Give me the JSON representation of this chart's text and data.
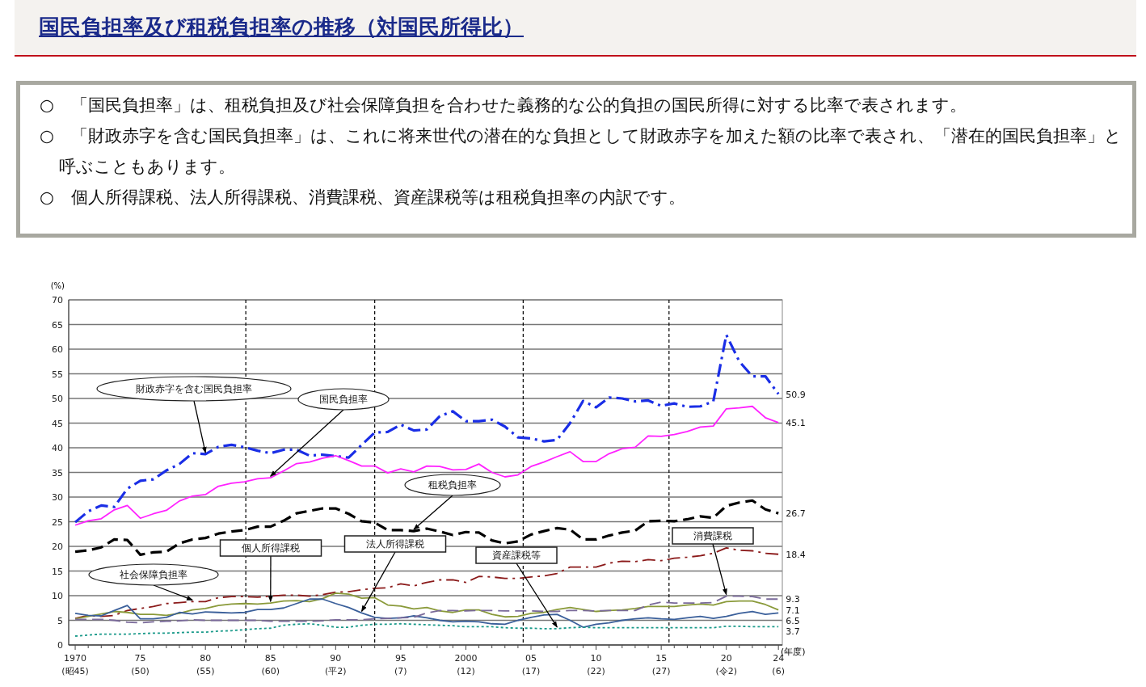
{
  "chart_data": {
    "type": "line",
    "title": "国民負担率及び租税負担率の推移（対国民所得比）",
    "annotations": [
      "○　「国民負担率」は、租税負担及び社会保障負担を合わせた義務的な公的負担の国民所得に対する比率で表されます。",
      "○　「財政赤字を含む国民負担率」は、これに将来世代の潜在的な負担として財政赤字を加えた額の比率で表され、「潜在的国民負担率」と呼ぶこともあります。",
      "○　個人所得課税、法人所得課税、消費課税、資産課税等は租税負担率の内訳です。"
    ],
    "xlabel": "(年度)",
    "ylabel": "(%)",
    "categories": [
      "1970\n(昭45)",
      null,
      null,
      null,
      null,
      "75\n(50)",
      null,
      null,
      null,
      null,
      "80\n(55)",
      null,
      null,
      null,
      null,
      "85\n(60)",
      null,
      null,
      null,
      null,
      "90\n(平2)",
      null,
      null,
      null,
      null,
      "95\n(7)",
      null,
      null,
      null,
      null,
      "2000\n(12)",
      null,
      null,
      null,
      null,
      "05\n(17)",
      null,
      null,
      null,
      null,
      "10\n(22)",
      null,
      null,
      null,
      null,
      "15\n(27)",
      null,
      null,
      null,
      null,
      "20\n(令2)",
      null,
      null,
      null,
      "24\n(6)"
    ],
    "ylim": [
      0,
      70
    ],
    "yticks": [
      0,
      5,
      10,
      15,
      20,
      25,
      30,
      35,
      40,
      45,
      50,
      55,
      60,
      65,
      70
    ],
    "grid": true,
    "legend": false,
    "marker": "none",
    "series": [
      {
        "name": "財政赤字を含む国民負担率",
        "color": "#1a2ee6",
        "line_style": "dashdot",
        "values": [
          24.9,
          27.1,
          28.3,
          28.0,
          31.7,
          33.3,
          33.6,
          35.4,
          36.7,
          38.9,
          38.7,
          40.2,
          40.6,
          40.1,
          39.4,
          38.9,
          39.6,
          39.6,
          38.4,
          38.6,
          38.3,
          38.0,
          40.6,
          43.1,
          43.2,
          44.7,
          43.5,
          43.7,
          46.4,
          47.4,
          45.4,
          45.4,
          45.7,
          44.3,
          42.1,
          41.9,
          41.3,
          41.6,
          45.0,
          49.5,
          48.2,
          50.2,
          50.0,
          49.4,
          49.6,
          48.5,
          49.0,
          48.3,
          48.4,
          49.4,
          62.9,
          57.5,
          54.5,
          54.5,
          50.9
        ],
        "value_labels": [
          null,
          null,
          null,
          null,
          null,
          null,
          null,
          null,
          null,
          null,
          null,
          null,
          null,
          null,
          null,
          null,
          null,
          null,
          null,
          null,
          null,
          null,
          null,
          null,
          null,
          null,
          null,
          null,
          null,
          null,
          null,
          null,
          null,
          null,
          null,
          null,
          null,
          null,
          null,
          null,
          null,
          null,
          null,
          null,
          null,
          null,
          null,
          null,
          null,
          null,
          null,
          null,
          null,
          null,
          "50.9"
        ]
      },
      {
        "name": "国民負担率",
        "color": "#ff22ff",
        "line_style": "solid",
        "values": [
          24.3,
          25.2,
          25.6,
          27.4,
          28.3,
          25.7,
          26.6,
          27.3,
          29.2,
          30.2,
          30.5,
          32.2,
          32.8,
          33.1,
          33.7,
          33.9,
          35.3,
          36.8,
          37.1,
          37.9,
          38.4,
          37.4,
          36.3,
          36.3,
          34.9,
          35.7,
          35.1,
          36.3,
          36.2,
          35.5,
          35.6,
          36.7,
          35.0,
          34.1,
          34.5,
          36.2,
          37.1,
          38.2,
          39.2,
          37.2,
          37.2,
          38.8,
          39.8,
          40.1,
          42.4,
          42.3,
          42.7,
          43.3,
          44.2,
          44.4,
          47.9,
          48.1,
          48.4,
          46.1,
          45.1
        ],
        "value_labels": [
          null,
          null,
          null,
          null,
          null,
          null,
          null,
          null,
          null,
          null,
          null,
          null,
          null,
          null,
          null,
          null,
          null,
          null,
          null,
          null,
          null,
          null,
          null,
          null,
          null,
          null,
          null,
          null,
          null,
          null,
          null,
          null,
          null,
          null,
          null,
          null,
          null,
          null,
          null,
          null,
          null,
          null,
          null,
          null,
          null,
          null,
          null,
          null,
          null,
          null,
          null,
          null,
          null,
          null,
          "45.1"
        ]
      },
      {
        "name": "租税負担率",
        "color": "#000000",
        "line_style": "dashed",
        "values": [
          18.9,
          19.2,
          19.8,
          21.4,
          21.3,
          18.3,
          18.8,
          18.9,
          20.6,
          21.4,
          21.7,
          22.6,
          23.0,
          23.3,
          24.0,
          24.0,
          25.2,
          26.7,
          27.2,
          27.7,
          27.7,
          26.6,
          25.1,
          24.8,
          23.3,
          23.3,
          23.1,
          23.6,
          23.0,
          22.3,
          22.9,
          22.8,
          21.2,
          20.6,
          21.0,
          22.4,
          23.1,
          23.7,
          23.4,
          21.4,
          21.4,
          22.2,
          22.8,
          23.2,
          25.1,
          25.2,
          25.1,
          25.5,
          26.1,
          25.8,
          28.2,
          28.9,
          29.3,
          27.5,
          26.7
        ],
        "value_labels": [
          null,
          null,
          null,
          null,
          null,
          null,
          null,
          null,
          null,
          null,
          null,
          null,
          null,
          null,
          null,
          null,
          null,
          null,
          null,
          null,
          null,
          null,
          null,
          null,
          null,
          null,
          null,
          null,
          null,
          null,
          null,
          null,
          null,
          null,
          null,
          null,
          null,
          null,
          null,
          null,
          null,
          null,
          null,
          null,
          null,
          null,
          null,
          null,
          null,
          null,
          null,
          null,
          null,
          null,
          "26.7"
        ]
      },
      {
        "name": "社会保障負担率",
        "color": "#8b1a1a",
        "line_style": "dashdot",
        "values": [
          5.4,
          6.0,
          5.8,
          6.0,
          7.0,
          7.4,
          7.8,
          8.4,
          8.6,
          8.8,
          8.8,
          9.6,
          9.8,
          9.8,
          9.7,
          9.9,
          10.1,
          10.1,
          9.9,
          10.2,
          10.7,
          10.8,
          11.2,
          11.5,
          11.6,
          12.4,
          12.0,
          12.7,
          13.2,
          13.2,
          12.7,
          13.9,
          13.8,
          13.5,
          13.5,
          13.8,
          14.0,
          14.5,
          15.8,
          15.8,
          15.8,
          16.6,
          17.0,
          16.9,
          17.3,
          17.1,
          17.6,
          17.8,
          18.1,
          18.6,
          19.7,
          19.2,
          19.1,
          18.6,
          18.4
        ],
        "value_labels": [
          null,
          null,
          null,
          null,
          null,
          null,
          null,
          null,
          null,
          null,
          null,
          null,
          null,
          null,
          null,
          null,
          null,
          null,
          null,
          null,
          null,
          null,
          null,
          null,
          null,
          null,
          null,
          null,
          null,
          null,
          null,
          null,
          null,
          null,
          null,
          null,
          null,
          null,
          null,
          null,
          null,
          null,
          null,
          null,
          null,
          null,
          null,
          null,
          null,
          null,
          null,
          null,
          null,
          null,
          "18.4"
        ]
      },
      {
        "name": "個人所得課税",
        "color": "#8a9a3a",
        "line_style": "solid",
        "values": [
          5.3,
          5.8,
          6.3,
          6.8,
          6.6,
          6.2,
          6.2,
          6.0,
          6.4,
          7.1,
          7.4,
          8.0,
          8.3,
          8.4,
          8.3,
          8.5,
          8.9,
          9.0,
          8.8,
          9.4,
          10.5,
          10.3,
          9.5,
          9.6,
          8.1,
          7.9,
          7.3,
          7.6,
          6.9,
          6.6,
          7.1,
          7.1,
          6.2,
          5.7,
          5.8,
          6.4,
          6.6,
          7.2,
          7.6,
          7.2,
          6.8,
          7.0,
          7.1,
          7.4,
          7.8,
          7.8,
          7.8,
          8.1,
          8.3,
          8.1,
          8.8,
          8.9,
          8.9,
          8.2,
          7.1
        ],
        "value_labels": [
          null,
          null,
          null,
          null,
          null,
          null,
          null,
          null,
          null,
          null,
          null,
          null,
          null,
          null,
          null,
          null,
          null,
          null,
          null,
          null,
          null,
          null,
          null,
          null,
          null,
          null,
          null,
          null,
          null,
          null,
          null,
          null,
          null,
          null,
          null,
          null,
          null,
          null,
          null,
          null,
          null,
          null,
          null,
          null,
          null,
          null,
          null,
          null,
          null,
          null,
          null,
          null,
          null,
          null,
          "7.1"
        ]
      },
      {
        "name": "法人所得課税",
        "color": "#3a5f9a",
        "line_style": "solid",
        "values": [
          6.4,
          6.0,
          5.9,
          7.0,
          8.0,
          5.3,
          5.3,
          5.6,
          6.6,
          6.3,
          6.7,
          6.6,
          6.5,
          6.6,
          7.2,
          7.2,
          7.5,
          8.4,
          9.3,
          9.3,
          8.4,
          7.6,
          6.5,
          5.6,
          5.4,
          5.5,
          5.9,
          5.5,
          5.0,
          4.7,
          4.8,
          4.7,
          4.3,
          4.2,
          5.0,
          5.6,
          6.1,
          6.2,
          5.0,
          3.6,
          4.2,
          4.5,
          5.0,
          5.3,
          5.5,
          5.3,
          5.2,
          5.5,
          5.8,
          5.4,
          5.8,
          6.4,
          6.8,
          6.2,
          6.5
        ],
        "value_labels": [
          null,
          null,
          null,
          null,
          null,
          null,
          null,
          null,
          null,
          null,
          null,
          null,
          null,
          null,
          null,
          null,
          null,
          null,
          null,
          null,
          null,
          null,
          null,
          null,
          null,
          null,
          null,
          null,
          null,
          null,
          null,
          null,
          null,
          null,
          null,
          null,
          null,
          null,
          null,
          null,
          null,
          null,
          null,
          null,
          null,
          null,
          null,
          null,
          null,
          null,
          null,
          null,
          null,
          null,
          "6.5"
        ]
      },
      {
        "name": "消費課税",
        "color": "#7a6a9a",
        "line_style": "dashed",
        "values": [
          5.2,
          5.2,
          5.2,
          5.0,
          4.6,
          4.5,
          4.7,
          4.8,
          4.9,
          5.1,
          5.0,
          5.0,
          5.0,
          5.0,
          5.0,
          4.8,
          4.8,
          4.8,
          4.8,
          4.9,
          5.1,
          5.1,
          5.1,
          5.3,
          5.4,
          5.5,
          5.6,
          6.5,
          7.0,
          7.0,
          6.9,
          7.0,
          7.0,
          6.9,
          6.9,
          6.9,
          6.8,
          6.8,
          7.0,
          7.0,
          6.9,
          7.0,
          7.0,
          7.0,
          8.1,
          8.7,
          8.5,
          8.5,
          8.5,
          8.6,
          9.9,
          9.9,
          9.8,
          9.3,
          9.3
        ],
        "value_labels": [
          null,
          null,
          null,
          null,
          null,
          null,
          null,
          null,
          null,
          null,
          null,
          null,
          null,
          null,
          null,
          null,
          null,
          null,
          null,
          null,
          null,
          null,
          null,
          null,
          null,
          null,
          null,
          null,
          null,
          null,
          null,
          null,
          null,
          null,
          null,
          null,
          null,
          null,
          null,
          null,
          null,
          null,
          null,
          null,
          null,
          null,
          null,
          null,
          null,
          null,
          null,
          null,
          null,
          null,
          "9.3"
        ]
      },
      {
        "name": "資産課税等",
        "color": "#1a9a8a",
        "line_style": "dotted",
        "values": [
          1.8,
          2.0,
          2.2,
          2.2,
          2.2,
          2.3,
          2.4,
          2.4,
          2.5,
          2.6,
          2.6,
          2.8,
          2.9,
          3.1,
          3.3,
          3.4,
          4.0,
          4.2,
          4.3,
          4.0,
          3.6,
          3.6,
          4.0,
          4.2,
          4.2,
          4.3,
          4.2,
          4.1,
          4.0,
          3.9,
          3.7,
          3.7,
          3.7,
          3.5,
          3.4,
          3.4,
          3.3,
          3.3,
          3.5,
          3.6,
          3.5,
          3.5,
          3.5,
          3.5,
          3.5,
          3.5,
          3.5,
          3.5,
          3.5,
          3.5,
          3.8,
          3.8,
          3.7,
          3.7,
          3.7
        ],
        "value_labels": [
          null,
          null,
          null,
          null,
          null,
          null,
          null,
          null,
          null,
          null,
          null,
          null,
          null,
          null,
          null,
          null,
          null,
          null,
          null,
          null,
          null,
          null,
          null,
          null,
          null,
          null,
          null,
          null,
          null,
          null,
          null,
          null,
          null,
          null,
          null,
          null,
          null,
          null,
          null,
          null,
          null,
          null,
          null,
          null,
          null,
          null,
          null,
          null,
          null,
          null,
          null,
          null,
          null,
          null,
          "3.7"
        ]
      }
    ]
  }
}
